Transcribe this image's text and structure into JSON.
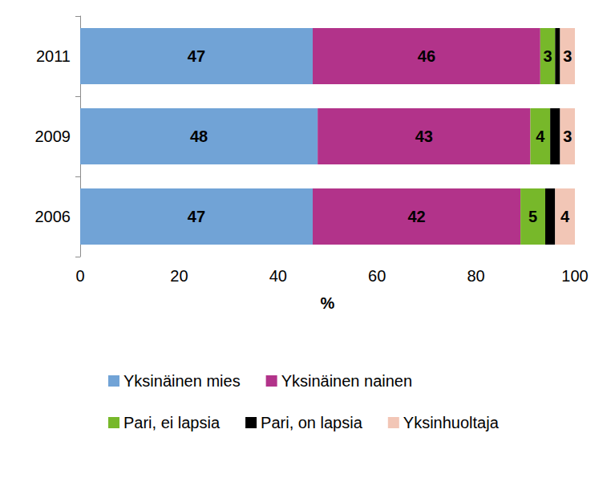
{
  "chart_data": {
    "type": "bar",
    "orientation": "horizontal",
    "stacked": true,
    "data_labels": true,
    "grid": false,
    "legend": "bottom",
    "categories": [
      "2006",
      "2009",
      "2011"
    ],
    "xlabel": "%",
    "xlim": [
      0,
      100
    ],
    "xticks": [
      0,
      20,
      40,
      60,
      80,
      100
    ],
    "series": [
      {
        "name": "Yksinäinen mies",
        "color": "#71a3d6",
        "values": [
          47,
          48,
          47
        ],
        "data_labels": true
      },
      {
        "name": "Yksinäinen nainen",
        "color": "#b2338a",
        "values": [
          42,
          43,
          46
        ],
        "data_labels": true
      },
      {
        "name": "Pari, ei lapsia",
        "color": "#77b82a",
        "values": [
          5,
          4,
          3
        ],
        "data_labels": true
      },
      {
        "name": "Pari, on lapsia",
        "color": "#000000",
        "values": [
          2,
          2,
          1
        ],
        "data_labels": false
      },
      {
        "name": "Yksinhuoltaja",
        "color": "#f2c6b6",
        "values": [
          4,
          3,
          3
        ],
        "data_labels": true
      }
    ]
  }
}
